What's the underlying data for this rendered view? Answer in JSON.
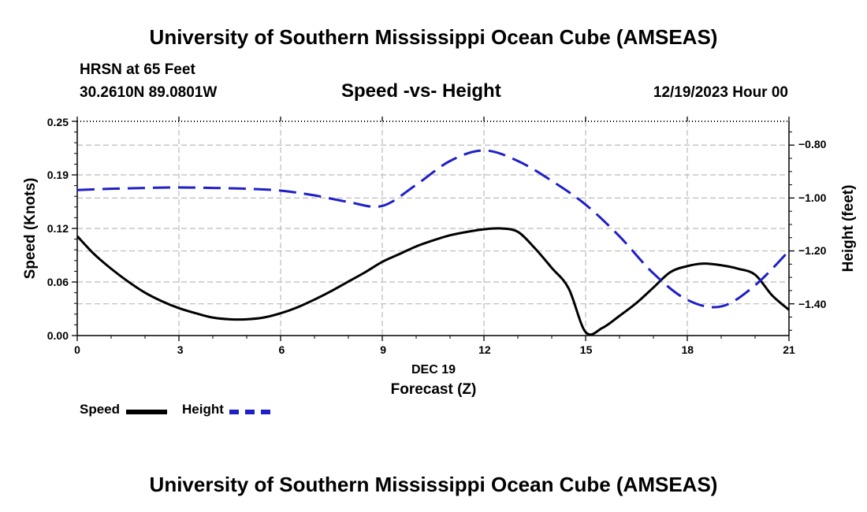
{
  "header": {
    "title_top": "University of Southern Mississippi Ocean Cube (AMSEAS)",
    "station": "HRSN at 65 Feet",
    "coords": "30.2610N  89.0801W",
    "plot_title": "Speed -vs- Height",
    "datetime": "12/19/2023 Hour 00"
  },
  "footer": {
    "title_bottom": "University of Southern Mississippi Ocean Cube (AMSEAS)"
  },
  "legend": {
    "speed_label": "Speed",
    "height_label": "Height"
  },
  "colors": {
    "speed": "#000000",
    "height": "#1f1fc8",
    "grid": "#bbbbbb"
  },
  "chart_data": {
    "type": "line",
    "title": "Speed -vs- Height",
    "xlabel": "Forecast (Z)",
    "xlabel_date": "DEC 19",
    "ylabel": "Speed (Knots)",
    "y2label": "Height (feet)",
    "xlim": [
      0,
      21
    ],
    "ylim": [
      0,
      0.25
    ],
    "y2lim": [
      -1.52,
      -0.71
    ],
    "x_ticks": [
      0,
      3,
      6,
      9,
      12,
      15,
      18,
      21
    ],
    "x_tick_labels": [
      "0",
      "3",
      "6",
      "9",
      "12",
      "15",
      "18",
      "21"
    ],
    "y_ticks": [
      0.0,
      0.0625,
      0.125,
      0.1875,
      0.25
    ],
    "y_tick_labels": [
      "0.00",
      "0.06",
      "0.12",
      "0.19",
      "0.25"
    ],
    "y2_ticks": [
      -1.4,
      -1.2,
      -1.0,
      -0.8
    ],
    "y2_tick_labels": [
      "−1.40",
      "−1.20",
      "−1.00",
      "−0.80"
    ],
    "grid": true,
    "series": [
      {
        "name": "Speed",
        "axis": "left",
        "style": "solid",
        "x": [
          0,
          0.5,
          1,
          1.5,
          2,
          2.5,
          3,
          3.5,
          4,
          4.5,
          5,
          5.5,
          6,
          6.5,
          7,
          7.5,
          8,
          8.5,
          9,
          9.5,
          10,
          10.5,
          11,
          11.5,
          12,
          12.5,
          13,
          13.5,
          14,
          14.5,
          15,
          15.5,
          16,
          16.5,
          17,
          17.5,
          18,
          18.5,
          19,
          19.5,
          20,
          20.5,
          21
        ],
        "values": [
          0.116,
          0.095,
          0.078,
          0.063,
          0.05,
          0.04,
          0.032,
          0.026,
          0.021,
          0.019,
          0.019,
          0.021,
          0.026,
          0.033,
          0.042,
          0.052,
          0.063,
          0.074,
          0.086,
          0.095,
          0.104,
          0.111,
          0.117,
          0.121,
          0.124,
          0.125,
          0.121,
          0.102,
          0.079,
          0.055,
          0.004,
          0.009,
          0.023,
          0.038,
          0.056,
          0.074,
          0.081,
          0.084,
          0.082,
          0.078,
          0.071,
          0.047,
          0.03
        ]
      },
      {
        "name": "Height",
        "axis": "right",
        "style": "dashed",
        "x": [
          0,
          1,
          2,
          3,
          4,
          5,
          6,
          7,
          8,
          9,
          10,
          11,
          12,
          13,
          14,
          15,
          16,
          17,
          18,
          19,
          20,
          21
        ],
        "values": [
          -0.97,
          -0.965,
          -0.962,
          -0.96,
          -0.962,
          -0.965,
          -0.972,
          -0.99,
          -1.015,
          -1.03,
          -0.95,
          -0.86,
          -0.82,
          -0.86,
          -0.935,
          -1.025,
          -1.145,
          -1.285,
          -1.385,
          -1.41,
          -1.33,
          -1.2
        ]
      }
    ]
  }
}
